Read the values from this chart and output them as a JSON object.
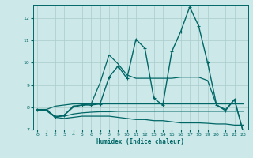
{
  "xlabel": "Humidex (Indice chaleur)",
  "bg_color": "#cce8e8",
  "grid_color": "#aacccc",
  "line_color": "#006666",
  "xlim": [
    -0.5,
    23.5
  ],
  "ylim": [
    7.0,
    12.6
  ],
  "yticks": [
    7,
    8,
    9,
    10,
    11,
    12
  ],
  "xticks": [
    0,
    1,
    2,
    3,
    4,
    5,
    6,
    7,
    8,
    9,
    10,
    11,
    12,
    13,
    14,
    15,
    16,
    17,
    18,
    19,
    20,
    21,
    22,
    23
  ],
  "series": [
    {
      "x": [
        0,
        1,
        2,
        3,
        4,
        5,
        6,
        7,
        8,
        9,
        10,
        11,
        12,
        13,
        14,
        15,
        16,
        17,
        18,
        19,
        20,
        21,
        22,
        23
      ],
      "y": [
        7.9,
        7.85,
        7.55,
        7.5,
        7.55,
        7.6,
        7.6,
        7.6,
        7.6,
        7.55,
        7.5,
        7.45,
        7.45,
        7.4,
        7.4,
        7.35,
        7.3,
        7.3,
        7.3,
        7.28,
        7.25,
        7.25,
        7.2,
        7.2
      ],
      "marker": null,
      "lw": 0.9
    },
    {
      "x": [
        0,
        1,
        2,
        3,
        4,
        5,
        6,
        7,
        8,
        9,
        10,
        11,
        12,
        13,
        14,
        15,
        16,
        17,
        18,
        19,
        20,
        21,
        22,
        23
      ],
      "y": [
        7.9,
        7.85,
        7.6,
        7.6,
        7.7,
        7.75,
        7.78,
        7.8,
        7.8,
        7.82,
        7.82,
        7.82,
        7.82,
        7.82,
        7.82,
        7.82,
        7.82,
        7.82,
        7.82,
        7.82,
        7.82,
        7.82,
        7.82,
        7.82
      ],
      "marker": null,
      "lw": 0.9
    },
    {
      "x": [
        0,
        1,
        2,
        3,
        4,
        5,
        6,
        7,
        8,
        9,
        10,
        11,
        12,
        13,
        14,
        15,
        16,
        17,
        18,
        19,
        20,
        21,
        22,
        23
      ],
      "y": [
        7.9,
        7.9,
        8.05,
        8.1,
        8.15,
        8.15,
        8.15,
        8.15,
        8.15,
        8.15,
        8.15,
        8.15,
        8.15,
        8.15,
        8.15,
        8.15,
        8.15,
        8.15,
        8.15,
        8.15,
        8.15,
        8.15,
        8.15,
        8.15
      ],
      "marker": null,
      "lw": 0.9
    },
    {
      "x": [
        0,
        1,
        2,
        3,
        4,
        5,
        6,
        7,
        8,
        9,
        10,
        11,
        12,
        13,
        14,
        15,
        16,
        17,
        18,
        19,
        20,
        21,
        22,
        23
      ],
      "y": [
        7.9,
        7.9,
        7.55,
        7.65,
        8.05,
        8.1,
        8.1,
        8.15,
        9.35,
        9.85,
        9.3,
        11.05,
        10.65,
        8.4,
        8.1,
        10.5,
        11.4,
        12.5,
        11.65,
        10.0,
        8.1,
        7.85,
        8.35,
        6.85
      ],
      "marker": "+",
      "lw": 1.0
    },
    {
      "x": [
        0,
        1,
        2,
        3,
        4,
        5,
        6,
        7,
        8,
        9,
        10,
        11,
        12,
        13,
        14,
        15,
        16,
        17,
        18,
        19,
        20,
        21,
        22,
        23
      ],
      "y": [
        7.9,
        7.9,
        7.55,
        7.65,
        8.0,
        8.1,
        8.15,
        9.1,
        10.35,
        9.95,
        9.45,
        9.3,
        9.3,
        9.3,
        9.3,
        9.3,
        9.35,
        9.35,
        9.35,
        9.2,
        8.1,
        7.9,
        8.35,
        6.85
      ],
      "marker": null,
      "lw": 0.9
    }
  ]
}
